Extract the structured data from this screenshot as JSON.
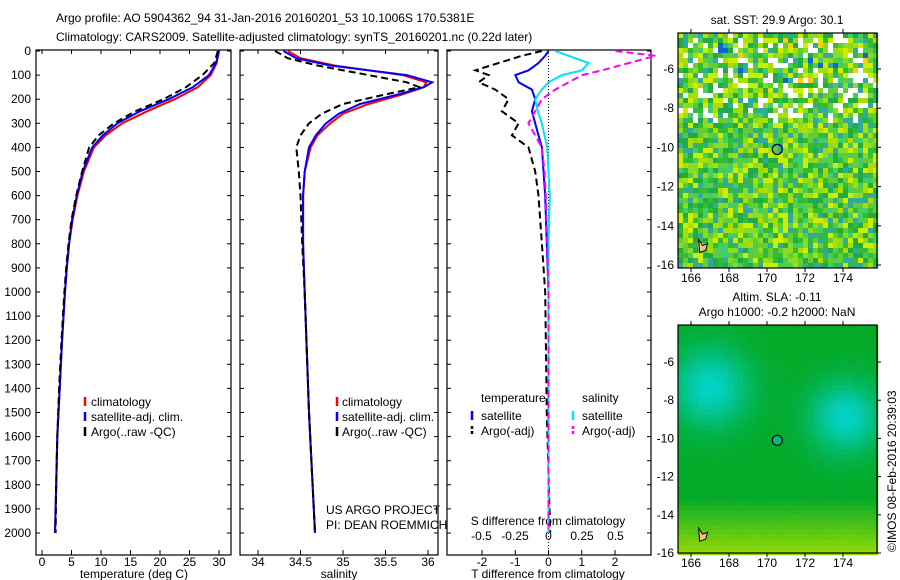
{
  "title_line1": "Argo profile: AO 5904362_94 31-Jan-2016 20160201_53 10.1006S 170.5381E",
  "title_line2": "Climatology: CARS2009. Satellite-adjusted climatology: synTS_20160201.nc (0.22d later)",
  "project_line1": "US ARGO PROJECT",
  "project_line2": "PI: DEAN ROEMMICH",
  "credit": "©IMOS 08-Feb-2016 20:39:03",
  "colors": {
    "clim": "#ff0000",
    "sat": "#0000ff",
    "argo": "#000000",
    "sal_sat": "#00e5ee",
    "sal_argo": "#ff00ff"
  },
  "chart_data": [
    {
      "type": "line",
      "xlabel": "temperature (deg C)",
      "ylabel": "",
      "xlim": [
        -1,
        31
      ],
      "ylim": [
        2050,
        0
      ],
      "xticks": [
        "0",
        "5",
        "10",
        "15",
        "20",
        "25",
        "30"
      ],
      "yticks": [
        "0",
        "100",
        "200",
        "300",
        "400",
        "500",
        "600",
        "700",
        "800",
        "900",
        "1000",
        "1100",
        "1200",
        "1300",
        "1400",
        "1500",
        "1600",
        "1700",
        "1800",
        "1900",
        "2000"
      ],
      "legend": [
        "climatology",
        "satellite-adj. clim.",
        "Argo(..raw -QC)"
      ],
      "depth": [
        0,
        50,
        100,
        150,
        200,
        250,
        300,
        350,
        400,
        500,
        600,
        700,
        800,
        900,
        1000,
        1200,
        1400,
        1600,
        1800,
        2000
      ],
      "series": [
        {
          "name": "climatology",
          "values": [
            30,
            29.6,
            28.6,
            26.4,
            22.5,
            17.8,
            13.6,
            10.8,
            8.8,
            7.1,
            6.0,
            5.2,
            4.6,
            4.2,
            3.9,
            3.4,
            3.0,
            2.6,
            2.4,
            2.2
          ]
        },
        {
          "name": "satellite-adj. clim.",
          "values": [
            30,
            29.5,
            28.3,
            25.6,
            21.5,
            16.6,
            12.8,
            10.3,
            8.5,
            6.9,
            5.9,
            5.1,
            4.6,
            4.2,
            3.9,
            3.4,
            3.0,
            2.6,
            2.4,
            2.2
          ]
        },
        {
          "name": "Argo(..raw -QC)",
          "values": [
            29.8,
            29.2,
            27.2,
            24.4,
            20.6,
            15.8,
            12.2,
            9.6,
            8.0,
            6.8,
            5.8,
            5.0,
            4.5,
            4.1,
            3.8,
            3.3,
            2.9,
            2.6,
            2.4,
            2.3
          ]
        }
      ]
    },
    {
      "type": "line",
      "xlabel": "salinity",
      "xlim": [
        33.8,
        36.1
      ],
      "ylim": [
        2050,
        0
      ],
      "xticks": [
        "34",
        "34.5",
        "35",
        "35.5",
        "36"
      ],
      "legend": [
        "climatology",
        "satellite-adj. clim.",
        "Argo(..raw -QC)"
      ],
      "depth": [
        0,
        30,
        60,
        100,
        130,
        150,
        180,
        220,
        260,
        300,
        350,
        400,
        500,
        600,
        800,
        1000,
        1500,
        2000
      ],
      "series": [
        {
          "name": "climatology",
          "values": [
            34.35,
            34.5,
            34.9,
            35.7,
            35.98,
            35.95,
            35.7,
            35.3,
            35.0,
            34.85,
            34.7,
            34.62,
            34.55,
            34.53,
            34.53,
            34.55,
            34.6,
            34.67
          ]
        },
        {
          "name": "satellite-adj. clim.",
          "values": [
            34.3,
            34.45,
            34.85,
            35.75,
            36.05,
            35.95,
            35.65,
            35.2,
            34.95,
            34.8,
            34.68,
            34.6,
            34.55,
            34.53,
            34.53,
            34.55,
            34.6,
            34.67
          ]
        },
        {
          "name": "Argo(..raw -QC)",
          "values": [
            34.2,
            34.35,
            34.7,
            35.3,
            35.75,
            35.9,
            35.5,
            35.0,
            34.75,
            34.6,
            34.5,
            34.45,
            34.48,
            34.5,
            34.52,
            34.55,
            34.6,
            34.67
          ]
        }
      ]
    },
    {
      "type": "line",
      "xlabel": "T difference from climatology",
      "xlabel_top": "S difference from climatology",
      "xlim": [
        -2.9,
        3.0
      ],
      "ylim": [
        2050,
        0
      ],
      "xticks": [
        "-2",
        "-1",
        "0",
        "1",
        "2"
      ],
      "xticks_top": [
        "-0.5",
        "-0.25",
        "0",
        "0.25",
        "0.5"
      ],
      "legend": {
        "temperature_title": "temperature",
        "salinity_title": "salinity",
        "items": [
          "satellite",
          "Argo(-adj)",
          "satellite",
          "Argo(-adj)"
        ]
      },
      "depth": [
        0,
        20,
        50,
        80,
        100,
        130,
        160,
        200,
        250,
        300,
        350,
        400,
        500,
        600,
        800,
        1000,
        1500,
        2000
      ],
      "series": [
        {
          "name": "temperature satellite",
          "values": [
            0,
            -0.1,
            -0.3,
            -0.6,
            -1.0,
            -0.9,
            -0.5,
            -0.4,
            -0.5,
            -0.4,
            -0.3,
            -0.2,
            -0.15,
            -0.1,
            -0.05,
            0,
            0,
            0
          ]
        },
        {
          "name": "temperature Argo(-adj)",
          "values": [
            -0.2,
            -0.8,
            -1.5,
            -2.2,
            -1.8,
            -2.1,
            -1.6,
            -1.2,
            -1.4,
            -0.9,
            -1.1,
            -0.6,
            -0.4,
            -0.3,
            -0.2,
            -0.1,
            -0.05,
            0.05
          ]
        },
        {
          "name": "salinity satellite",
          "values": [
            0.05,
            0.15,
            0.3,
            0.25,
            0.1,
            0,
            -0.05,
            -0.1,
            -0.08,
            -0.05,
            -0.03,
            -0.01,
            0,
            0.01,
            0,
            0,
            0,
            0
          ]
        },
        {
          "name": "salinity Argo(-adj)",
          "values": [
            0.5,
            0.8,
            0.6,
            0.4,
            0.25,
            0.15,
            0.05,
            -0.05,
            -0.1,
            -0.15,
            -0.1,
            -0.05,
            -0.03,
            -0.02,
            -0.01,
            0,
            0,
            0
          ]
        }
      ]
    },
    {
      "type": "heatmap",
      "title": "sat. SST: 29.9 Argo: 30.1",
      "xticks": [
        "166",
        "168",
        "170",
        "172",
        "174"
      ],
      "yticks": [
        "-6",
        "-8",
        "-10",
        "-12",
        "-14",
        "-16"
      ],
      "marker": {
        "lon": 170.54,
        "lat": -10.1
      }
    },
    {
      "type": "heatmap",
      "title_line1": "Altim. SLA: -0.11",
      "title_line2": "Argo h1000: -0.2 h2000: NaN",
      "xticks": [
        "166",
        "168",
        "170",
        "172",
        "174"
      ],
      "yticks": [
        "-6",
        "-8",
        "-10",
        "-12",
        "-14",
        "-16"
      ],
      "marker": {
        "lon": 170.54,
        "lat": -10.1
      }
    }
  ]
}
